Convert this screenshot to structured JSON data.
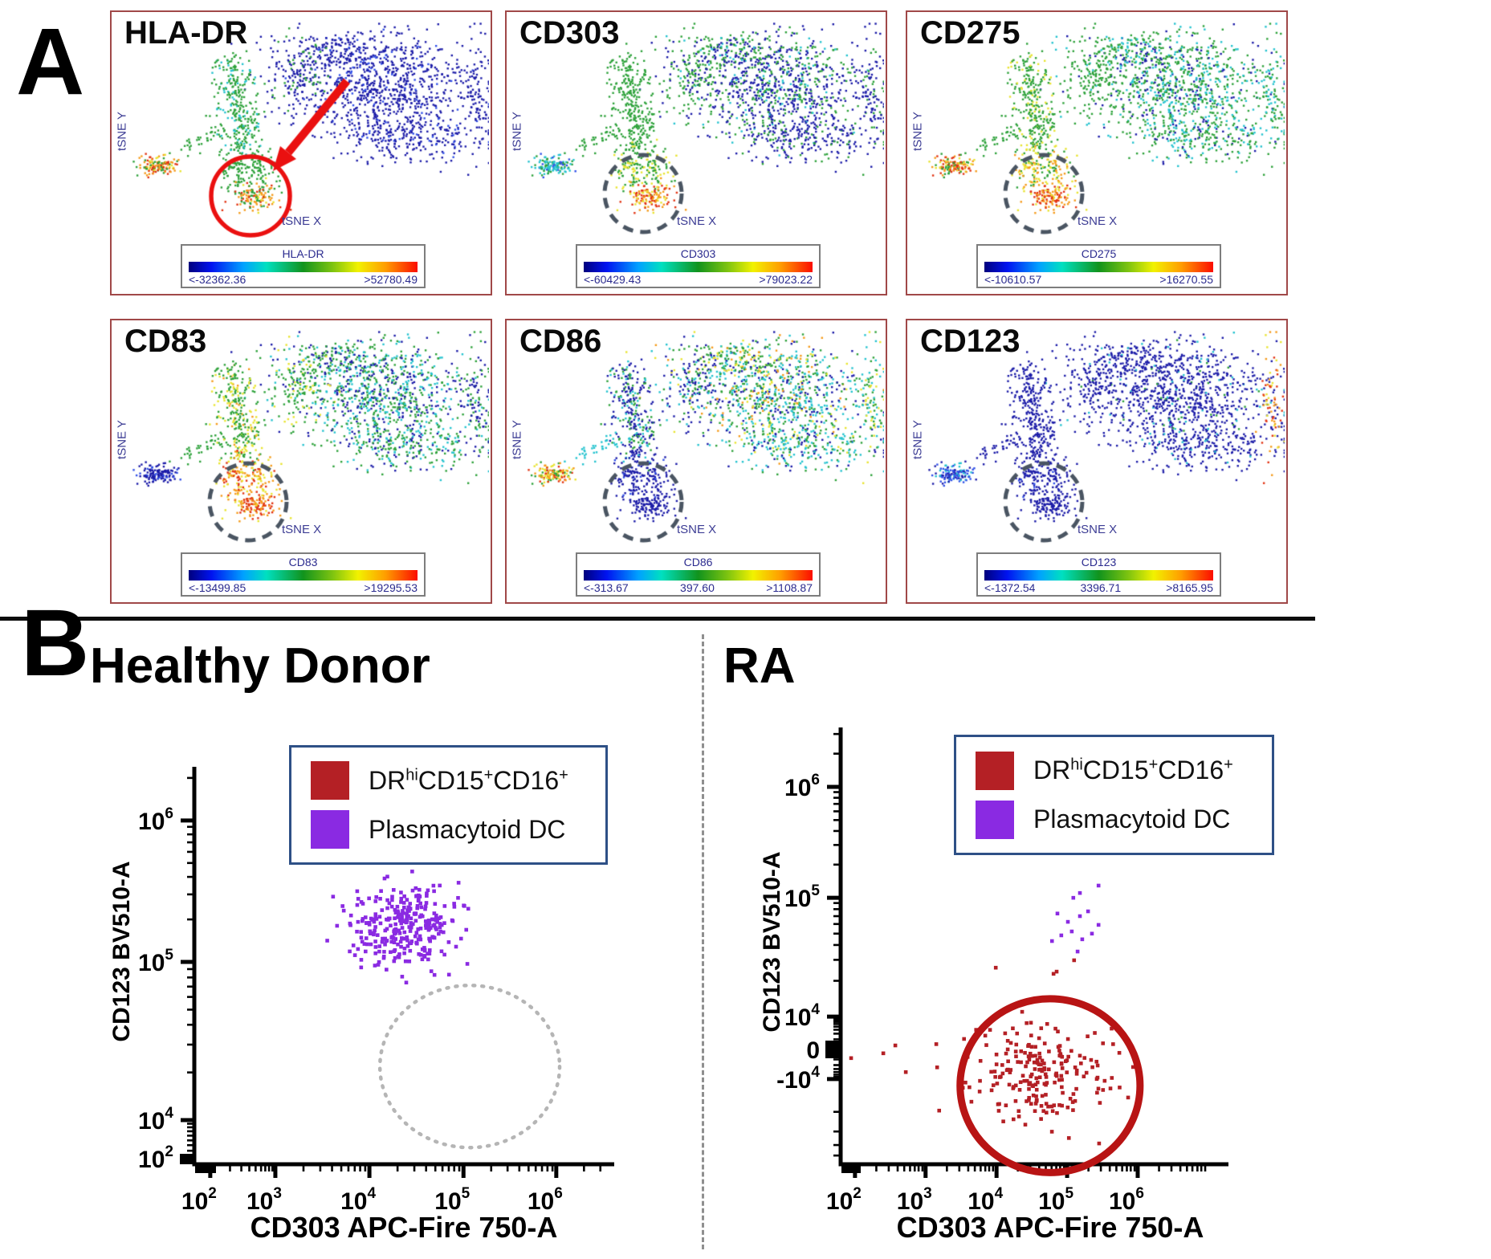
{
  "page": {
    "panel_a_letter": "A",
    "panel_b_letter": "B"
  },
  "chart_data": {
    "figure_type": "multi-panel flow cytometry figure: tSNE marker-expression maps (A) and CD303 vs CD123 dot plots (B)",
    "colors": {
      "nv": "#1c1ca8",
      "bl": "#3050e8",
      "tl": "#25c3cf",
      "gr": "#2ea23b",
      "yl": "#e8e431",
      "or": "#f59b1b",
      "rd": "#e23312"
    },
    "tsne_axis_labels": {
      "x": "tSNE X",
      "y": "tSNE Y"
    },
    "tsne_geometry": [
      {
        "id": "blob_main",
        "kind": "gauss",
        "c": [
          0.7,
          0.3
        ],
        "s": [
          0.13,
          0.11
        ],
        "n": 800
      },
      {
        "id": "blob_top",
        "kind": "gauss",
        "c": [
          0.58,
          0.12
        ],
        "s": [
          0.09,
          0.045
        ],
        "n": 180
      },
      {
        "id": "blob_low",
        "kind": "gauss",
        "c": [
          0.78,
          0.52
        ],
        "s": [
          0.11,
          0.065
        ],
        "n": 260
      },
      {
        "id": "blob_left",
        "kind": "gauss",
        "c": [
          0.47,
          0.25
        ],
        "s": [
          0.045,
          0.085
        ],
        "n": 140
      },
      {
        "id": "right_edge",
        "kind": "gauss",
        "c": [
          0.965,
          0.3
        ],
        "s": [
          0.018,
          0.13
        ],
        "n": 80
      },
      {
        "id": "arm",
        "kind": "line",
        "a": [
          0.27,
          0.17
        ],
        "b": [
          0.315,
          0.58
        ],
        "s": 0.03,
        "n": 300
      },
      {
        "id": "bridge",
        "kind": "line",
        "a": [
          0.13,
          0.6
        ],
        "b": [
          0.25,
          0.48
        ],
        "s": 0.018,
        "n": 35
      },
      {
        "id": "tail_up",
        "kind": "gauss",
        "c": [
          0.315,
          0.665
        ],
        "s": [
          0.04,
          0.048
        ],
        "n": 160
      },
      {
        "id": "tail_core",
        "kind": "gauss",
        "c": [
          0.345,
          0.795
        ],
        "s": [
          0.034,
          0.03
        ],
        "n": 130
      },
      {
        "id": "left_cl",
        "kind": "gauss",
        "c": [
          0.075,
          0.655
        ],
        "s": [
          0.032,
          0.022
        ],
        "n": 130
      }
    ],
    "tsne_panels": [
      {
        "title": "HLA-DR",
        "annotation": "red_circle_arrow",
        "colorbar": {
          "title": "HLA-DR",
          "min": "<-32362.36",
          "mid": "",
          "max": ">52780.49"
        },
        "palettes": {
          "blob_main": "nv:9,bl:1",
          "blob_top": "nv:9,bl:1",
          "blob_low": "nv:9,bl:1",
          "blob_left": "nv:7,gr:3",
          "right_edge": "nv:1",
          "arm": "gr:8,tl:2",
          "bridge": "gr:1",
          "tail_up": "gr:1",
          "tail_core": "gr:3,yl:2,or:3,rd:2",
          "left_cl": "rd:3,or:3,yl:2,gr:2"
        }
      },
      {
        "title": "CD303",
        "annotation": "dashed_circle",
        "colorbar": {
          "title": "CD303",
          "min": "<-60429.43",
          "mid": "",
          "max": ">79023.22"
        },
        "palettes": {
          "blob_main": "nv:6,gr:3,tl:1",
          "blob_top": "gr:6,nv:3,tl:1",
          "blob_low": "nv:8,gr:2",
          "blob_left": "gr:7,nv:3",
          "right_edge": "nv:7,gr:3",
          "arm": "gr:1",
          "bridge": "gr:1",
          "tail_up": "gr:6,yl:4",
          "tail_core": "or:4,rd:4,yl:2",
          "left_cl": "tl:5,gr:3,bl:2"
        }
      },
      {
        "title": "CD275",
        "annotation": "dashed_circle",
        "colorbar": {
          "title": "CD275",
          "min": "<-10610.57",
          "mid": "",
          "max": ">16270.55"
        },
        "palettes": {
          "blob_main": "gr:5,tl:3,nv:2",
          "blob_top": "gr:6,tl:2,nv:2",
          "blob_low": "gr:6,tl:3,nv:1",
          "blob_left": "gr:1",
          "right_edge": "gr:7,tl:3",
          "arm": "gr:8,yl:2",
          "bridge": "gr:1",
          "tail_up": "yl:4,gr:3,or:3",
          "tail_core": "or:4,rd:4,yl:2",
          "left_cl": "or:3,rd:3,yl:2,gr:2"
        }
      },
      {
        "title": "CD83",
        "annotation": "dashed_circle",
        "colorbar": {
          "title": "CD83",
          "min": "<-13499.85",
          "mid": "",
          "max": ">19295.53"
        },
        "palettes": {
          "blob_main": "gr:4,nv:3,tl:3",
          "blob_top": "gr:5,nv:3,tl:2",
          "blob_low": "gr:5,tl:3,nv:2",
          "blob_left": "gr:7,yl:3",
          "right_edge": "gr:6,nv:4",
          "arm": "gr:6,yl:3,or:1",
          "bridge": "gr:1",
          "tail_up": "or:4,yl:3,rd:3",
          "tail_core": "rd:5,or:4,yl:1",
          "left_cl": "nv:8,bl:2"
        }
      },
      {
        "title": "CD86",
        "annotation": "dashed_circle",
        "colorbar": {
          "title": "CD86",
          "min": "<-313.67",
          "mid": "397.60",
          "max": ">1108.87"
        },
        "palettes": {
          "blob_main": "tl:3,gr:3,nv:2,yl:1,or:1",
          "blob_top": "gr:4,tl:2,yl:2,or:1,nv:1",
          "blob_low": "tl:4,gr:3,nv:2,yl:1",
          "blob_left": "nv:5,gr:3,tl:2",
          "right_edge": "gr:5,tl:3,yl:2",
          "arm": "nv:5,gr:3,tl:2",
          "bridge": "tl:1",
          "tail_up": "nv:9,bl:1",
          "tail_core": "nv:1",
          "left_cl": "or:3,yl:3,gr:2,rd:2"
        }
      },
      {
        "title": "CD123",
        "annotation": "dashed_circle",
        "colorbar": {
          "title": "CD123",
          "min": "<-1372.54",
          "mid": "3396.71",
          "max": ">8165.95"
        },
        "palettes": {
          "blob_main": "nv:18,tl:1,gr:1",
          "blob_top": "nv:9,tl:1",
          "blob_low": "nv:19,tl:1",
          "blob_left": "nv:1",
          "right_edge": "or:3,rd:3,yl:2,nv:2",
          "arm": "nv:1",
          "bridge": "nv:1",
          "tail_up": "nv:9,bl:1",
          "tail_core": "nv:1",
          "left_cl": "bl:5,nv:3,tl:2"
        }
      }
    ],
    "flow_plots": [
      {
        "id": "hd",
        "title": "Healthy Donor",
        "xlabel": "CD303 APC-Fire 750-A",
        "ylabel": "CD123 BV510-A",
        "x_ticks": {
          "majors": [
            {
              "b": "10",
              "e": "2",
              "f": 0.038
            },
            {
              "b": "10",
              "e": "3",
              "f": 0.193
            },
            {
              "b": "10",
              "e": "4",
              "f": 0.417
            },
            {
              "b": "10",
              "e": "5",
              "f": 0.641
            },
            {
              "b": "10",
              "e": "6",
              "f": 0.862
            }
          ],
          "minors": [
            0.085,
            0.112,
            0.131,
            0.146,
            0.159,
            0.169,
            0.178,
            0.186,
            0.26,
            0.3,
            0.328,
            0.35,
            0.367,
            0.382,
            0.395,
            0.407,
            0.484,
            0.524,
            0.552,
            0.574,
            0.591,
            0.606,
            0.619,
            0.631,
            0.707,
            0.746,
            0.774,
            0.796,
            0.813,
            0.828,
            0.841,
            0.853,
            0.928,
            0.967
          ]
        },
        "y_ticks": {
          "majors": [
            {
              "b": "10",
              "e": "6",
              "f": 0.865
            },
            {
              "b": "10",
              "e": "5",
              "f": 0.509
            },
            {
              "b": "10",
              "e": "4",
              "f": 0.111
            },
            {
              "b": "10",
              "e": "2",
              "f": 0.014
            }
          ],
          "minors": [
            0.034,
            0.048,
            0.06,
            0.072,
            0.083,
            0.093,
            0.102,
            0.231,
            0.301,
            0.351,
            0.389,
            0.421,
            0.447,
            0.47,
            0.491,
            0.616,
            0.679,
            0.723,
            0.758,
            0.786,
            0.81,
            0.83,
            0.849,
            0.972
          ]
        },
        "series": [
          {
            "name": "Plasmacytoid DC",
            "color": "#8a2ae2",
            "gauss": {
              "c": [
                0.503,
                0.602
              ],
              "s": [
                0.069,
                0.055
              ],
              "n": 300
            },
            "points": [
              [
                0.4,
                0.56
              ],
              [
                0.43,
                0.5
              ],
              [
                0.56,
                0.53
              ],
              [
                0.34,
                0.6
              ]
            ],
            "desc": "pDC cluster: CD303 ~2-9x10^4, CD123 ~1.5-3x10^5"
          }
        ],
        "annotations": [
          {
            "shape": "ellipse",
            "c": [
              0.656,
              0.246
            ],
            "r": [
              0.214,
              0.204
            ],
            "color": "#b5b5b5",
            "width": 4.5,
            "dash": "2 9",
            "desc": "dotted empty gate: no DRhiCD15+CD16+ cells in healthy donor"
          }
        ],
        "legend": [
          {
            "color": "#b42025",
            "parts": [
              {
                "t": "DR"
              },
              {
                "t": "hi",
                "sup": true
              },
              {
                "t": "CD15"
              },
              {
                "t": "+",
                "sup": true
              },
              {
                "t": "CD16"
              },
              {
                "t": "+",
                "sup": true
              }
            ]
          },
          {
            "color": "#8a2ae2",
            "parts": [
              {
                "t": "Plasmacytoid DC"
              }
            ]
          }
        ]
      },
      {
        "id": "ra",
        "title": "RA",
        "xlabel": "CD303 APC-Fire 750-A",
        "ylabel": "CD123 BV510-A",
        "x_ticks": {
          "majors": [
            {
              "b": "10",
              "e": "2",
              "f": 0.037
            },
            {
              "b": "10",
              "e": "3",
              "f": 0.219
            },
            {
              "b": "10",
              "e": "4",
              "f": 0.402
            },
            {
              "b": "10",
              "e": "5",
              "f": 0.584
            },
            {
              "b": "10",
              "e": "6",
              "f": 0.766
            }
          ],
          "minors": [
            0.092,
            0.124,
            0.147,
            0.164,
            0.179,
            0.191,
            0.201,
            0.211,
            0.274,
            0.306,
            0.329,
            0.346,
            0.361,
            0.373,
            0.383,
            0.393,
            0.457,
            0.489,
            0.512,
            0.529,
            0.544,
            0.556,
            0.566,
            0.576,
            0.639,
            0.671,
            0.694,
            0.711,
            0.726,
            0.738,
            0.748,
            0.758,
            0.821,
            0.853,
            0.876,
            0.893,
            0.907,
            0.92,
            0.93,
            0.94
          ]
        },
        "y_ticks": {
          "majors": [
            {
              "b": "10",
              "e": "6",
              "f": 0.864
            },
            {
              "b": "10",
              "e": "5",
              "f": 0.61
            },
            {
              "b": "10",
              "e": "4",
              "f": 0.338
            },
            {
              "b": "0",
              "f": 0.263
            },
            {
              "b": "-10",
              "e": "4",
              "f": 0.195
            }
          ],
          "minors": [
            0.286,
            0.299,
            0.308,
            0.315,
            0.321,
            0.326,
            0.33,
            0.334,
            0.24,
            0.227,
            0.218,
            0.211,
            0.205,
            0.2,
            0.12,
            0.075,
            0.044,
            0.02,
            0.42,
            0.468,
            0.502,
            0.528,
            0.55,
            0.568,
            0.584,
            0.598,
            0.686,
            0.731,
            0.763,
            0.788,
            0.808,
            0.825,
            0.839,
            0.852,
            0.94,
            0.985
          ]
        },
        "series": [
          {
            "name": "DRhiCD15+CD16+",
            "color": "#b42025",
            "gauss": {
              "c": [
                0.52,
                0.206
              ],
              "s": [
                0.094,
                0.056
              ],
              "n": 215
            },
            "points": [
              [
                0.141,
                0.272
              ],
              [
                0.168,
                0.211
              ],
              [
                0.027,
                0.243
              ],
              [
                0.11,
                0.254
              ],
              [
                0.468,
                0.349
              ],
              [
                0.549,
                0.436
              ],
              [
                0.557,
                0.441
              ],
              [
                0.602,
                0.467
              ],
              [
                0.4,
                0.45
              ]
            ],
            "desc": "DRhi CD15+ CD16+ population: CD303 ~0.4-3x10^5, CD123 ~0 to -10^4"
          },
          {
            "name": "Plasmacytoid DC",
            "color": "#8a2ae2",
            "points": [
              [
                0.559,
                0.574
              ],
              [
                0.6,
                0.61
              ],
              [
                0.617,
                0.621
              ],
              [
                0.569,
                0.524
              ],
              [
                0.596,
                0.533
              ],
              [
                0.623,
                0.515
              ],
              [
                0.545,
                0.511
              ],
              [
                0.648,
                0.528
              ],
              [
                0.617,
                0.568
              ],
              [
                0.665,
                0.638
              ],
              [
                0.638,
                0.579
              ],
              [
                0.586,
                0.555
              ],
              [
                0.611,
                0.487
              ],
              [
                0.665,
                0.548
              ]
            ],
            "desc": "reduced pDC: CD303 ~3-8x10^4, CD123 ~3x10^4-1.3x10^5"
          }
        ],
        "annotations": [
          {
            "shape": "ellipse",
            "c": [
              0.54,
              0.18
            ],
            "r": [
              0.232,
              0.199
            ],
            "color": "#b81414",
            "width": 9,
            "dash": "",
            "desc": "solid red gate around DRhiCD15+CD16+ cluster"
          }
        ],
        "legend": [
          {
            "color": "#b42025",
            "parts": [
              {
                "t": "DR"
              },
              {
                "t": "hi",
                "sup": true
              },
              {
                "t": "CD15"
              },
              {
                "t": "+",
                "sup": true
              },
              {
                "t": "CD16"
              },
              {
                "t": "+",
                "sup": true
              }
            ]
          },
          {
            "color": "#8a2ae2",
            "parts": [
              {
                "t": "Plasmacytoid DC"
              }
            ]
          }
        ]
      }
    ]
  }
}
